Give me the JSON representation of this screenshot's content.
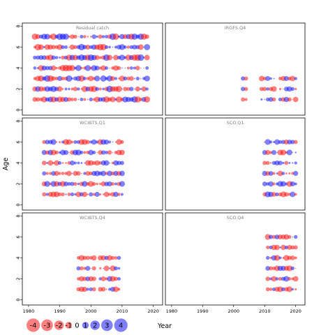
{
  "chart_data": {
    "type": "scatter",
    "subtype": "bubble-residuals",
    "xlabel": "Year",
    "ylabel": "Age",
    "xlim": [
      1978,
      2023
    ],
    "x_ticks": [
      1980,
      1990,
      2000,
      2010,
      2020
    ],
    "x_tick_labels": [
      "1980",
      "1990",
      "2000",
      "2010",
      "2020"
    ],
    "ylim": [
      -0.5,
      8.3
    ],
    "y_ticks": [
      0,
      2,
      4,
      6,
      8
    ],
    "y_tick_labels": [
      "0",
      "2",
      "4",
      "6",
      "8"
    ],
    "colors": {
      "positive": "#0000ff",
      "negative": "#ff0000"
    },
    "legend": {
      "placement": "bottom",
      "entries": [
        {
          "label": "-4",
          "value": -4
        },
        {
          "label": "-3",
          "value": -3
        },
        {
          "label": "-2",
          "value": -2
        },
        {
          "label": "-1",
          "value": -1
        },
        {
          "label": "0",
          "value": 0
        },
        {
          "label": "1",
          "value": 1
        },
        {
          "label": "2",
          "value": 2
        },
        {
          "label": "3",
          "value": 3
        },
        {
          "label": "4",
          "value": 4
        }
      ]
    },
    "panels": [
      {
        "title": "Residual catch",
        "years": [
          1982,
          2018
        ],
        "ages": [
          1,
          7
        ],
        "seed": 11,
        "scale": 1.0
      },
      {
        "title": "IRGFS.Q4",
        "years": [
          2003,
          2020
        ],
        "ages": [
          1,
          3
        ],
        "seed": 23,
        "gap_years": [
          2005,
          2006,
          2007,
          2008,
          2014
        ],
        "scale": 0.9
      },
      {
        "title": "WCIBTS.Q1",
        "years": [
          1985,
          2010
        ],
        "ages": [
          1,
          6
        ],
        "seed": 37,
        "scale": 0.9
      },
      {
        "title": "SCO.Q1",
        "years": [
          2010,
          2020
        ],
        "ages": [
          1,
          6
        ],
        "seed": 41,
        "scale": 0.9
      },
      {
        "title": "WCIBTS.Q4",
        "years": [
          1996,
          2009
        ],
        "ages": [
          1,
          4
        ],
        "seed": 53,
        "gap_years": [
          2002
        ],
        "scale": 0.9
      },
      {
        "title": "SCO.Q4",
        "years": [
          2011,
          2020
        ],
        "ages": [
          1,
          6
        ],
        "seed": 67,
        "scale": 0.9
      }
    ]
  }
}
